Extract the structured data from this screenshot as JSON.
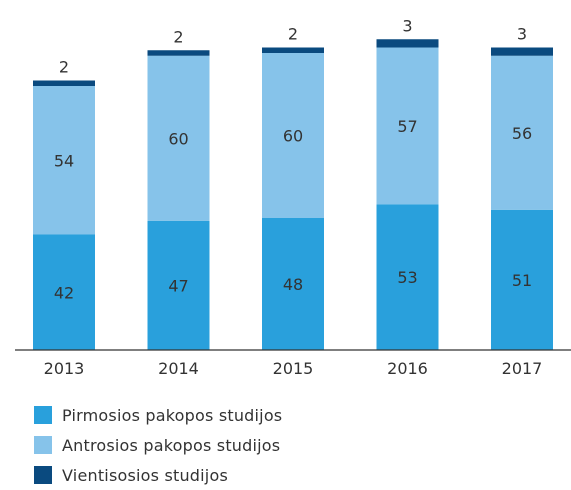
{
  "chart_data": {
    "type": "bar",
    "stacked": true,
    "categories": [
      "2013",
      "2014",
      "2015",
      "2016",
      "2017"
    ],
    "series": [
      {
        "name": "Pirmosios pakopos studijos",
        "values": [
          42,
          47,
          48,
          53,
          51
        ],
        "color": "#29a0dc"
      },
      {
        "name": "Antrosios pakopos studijos",
        "values": [
          54,
          60,
          60,
          57,
          56
        ],
        "color": "#86c3ea"
      },
      {
        "name": "Vientisosios studijos",
        "values": [
          2,
          2,
          2,
          3,
          3
        ],
        "color": "#0a4a7f"
      }
    ],
    "ylim": [
      0,
      113
    ],
    "legend": "bottom",
    "grid": false
  }
}
